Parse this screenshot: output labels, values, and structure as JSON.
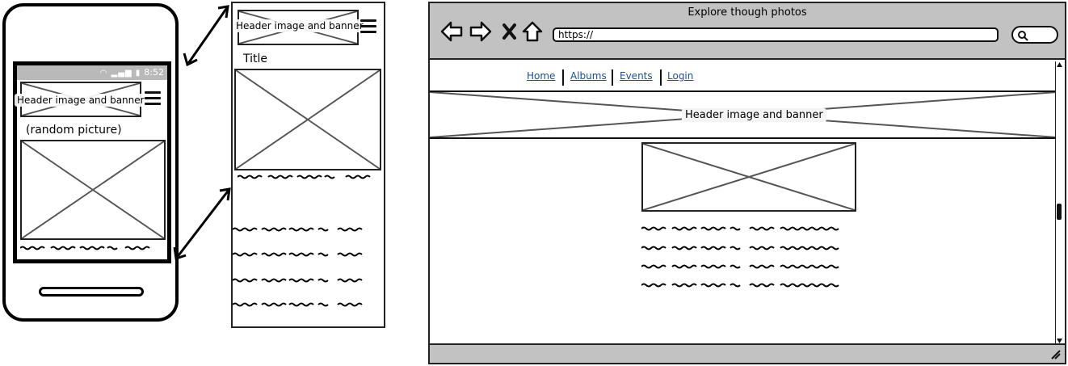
{
  "phone": {
    "status_time": "8:52",
    "header_label": "Header image and banner",
    "random_label": "(random picture)"
  },
  "panel": {
    "header_label": "Header image and banner",
    "title": "Title"
  },
  "browser": {
    "window_title": "Explore though photos",
    "url": "https://",
    "nav": [
      "Home",
      "Albums",
      "Events",
      "Login"
    ],
    "banner_label": "Header image and banner"
  },
  "colors": {
    "chrome_gray": "#c2c2c2",
    "link_blue": "#1a4fa0",
    "placeholder_stroke": "#555555"
  },
  "icons": [
    "back-arrow-icon",
    "forward-arrow-icon",
    "close-icon",
    "home-icon",
    "search-icon",
    "hamburger-menu-icon",
    "resize-grip-icon"
  ]
}
